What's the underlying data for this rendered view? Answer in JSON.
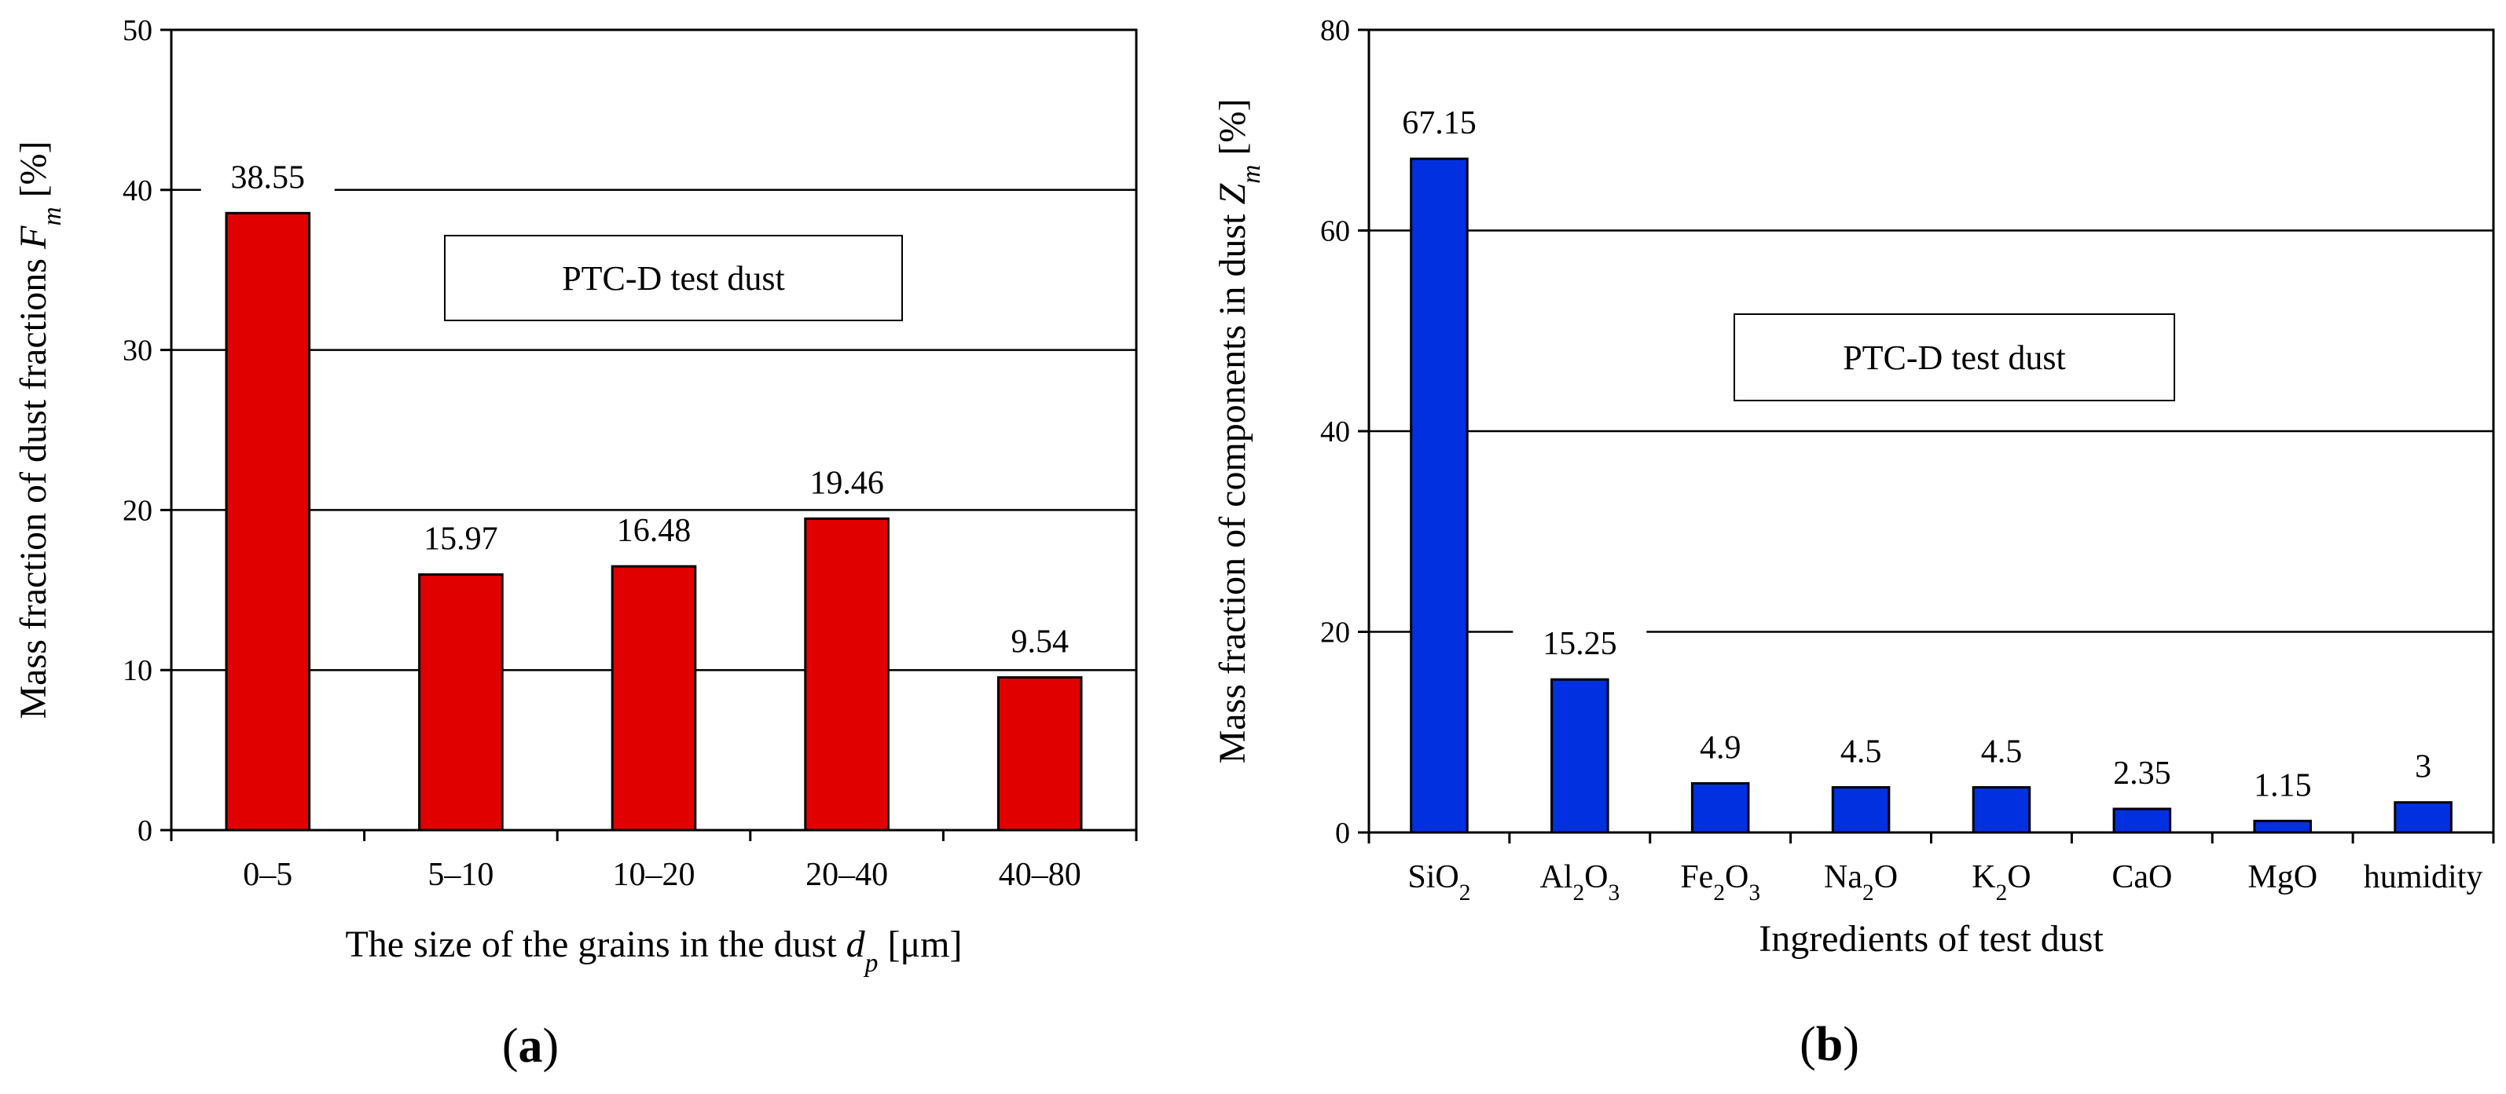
{
  "chart_data": [
    {
      "type": "bar",
      "panel_label": "a",
      "categories": [
        "0–5",
        "5–10",
        "10–20",
        "20–40",
        "40–80"
      ],
      "values": [
        38.55,
        15.97,
        16.48,
        19.46,
        9.54
      ],
      "data_labels": [
        "38.55",
        "15.97",
        "16.48",
        "19.46",
        "9.54"
      ],
      "ylim": [
        0,
        50
      ],
      "yticks": [
        0,
        10,
        20,
        30,
        40,
        50
      ],
      "grid": true,
      "bar_color": "#e00000",
      "annotation": "PTC-D test dust",
      "xlabel": {
        "text": "The size of the grains in the dust ",
        "var": "d",
        "sub": "p",
        "unit": " [μm]"
      },
      "ylabel": {
        "text": "Mass fraction of dust fractions ",
        "var": "F",
        "sub": "m",
        "unit": " [%]"
      }
    },
    {
      "type": "bar",
      "panel_label": "b",
      "categories": [
        {
          "base": "SiO",
          "sub": "2",
          "rest": ""
        },
        {
          "base": "Al",
          "sub": "2",
          "rest": "O",
          "sub2": "3"
        },
        {
          "base": "Fe",
          "sub": "2",
          "rest": "O",
          "sub2": "3"
        },
        {
          "base": "Na",
          "sub": "2",
          "rest": "O"
        },
        {
          "base": "K",
          "sub": "2",
          "rest": "O"
        },
        {
          "base": "CaO"
        },
        {
          "base": "MgO"
        },
        {
          "base": "humidity"
        }
      ],
      "values": [
        67.15,
        15.25,
        4.9,
        4.5,
        4.5,
        2.35,
        1.15,
        3
      ],
      "data_labels": [
        "67.15",
        "15.25",
        "4.9",
        "4.5",
        "4.5",
        "2.35",
        "1.15",
        "3"
      ],
      "ylim": [
        0,
        80
      ],
      "yticks": [
        0,
        20,
        40,
        60,
        80
      ],
      "grid": true,
      "bar_color": "#0030e0",
      "annotation": "PTC-D test dust",
      "xlabel": {
        "text": "Ingredients of test dust"
      },
      "ylabel": {
        "text": "Mass fraction of components in dust ",
        "var": "Z",
        "sub": "m",
        "unit": " [%]"
      }
    }
  ]
}
